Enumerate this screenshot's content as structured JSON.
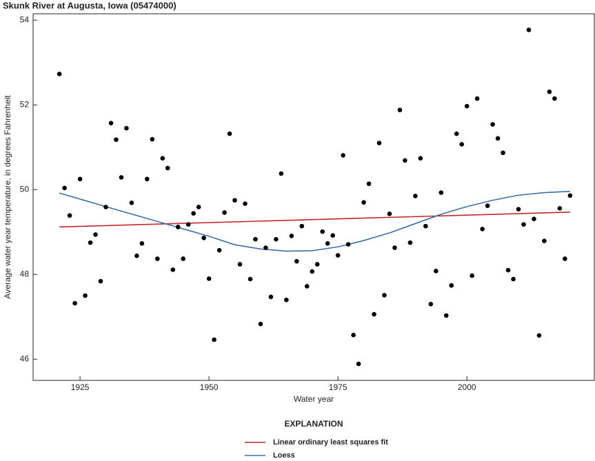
{
  "chart_data": {
    "type": "scatter",
    "title": "Skunk River at Augusta, Iowa (05474000)",
    "x_label": "Water year",
    "y_label": "Average water year temperature, in degrees Fahrenheit",
    "legend_title": "EXPLANATION",
    "xlim": [
      1915.9,
      2024.7
    ],
    "ylim": [
      45.5,
      54.15
    ],
    "xticks": [
      1925,
      1950,
      1975,
      2000
    ],
    "yticks": [
      46,
      48,
      50,
      52,
      54
    ],
    "points": {
      "color": "#000000",
      "x": [
        1921,
        1922,
        1923,
        1924,
        1925,
        1926,
        1927,
        1928,
        1929,
        1930,
        1931,
        1932,
        1933,
        1934,
        1935,
        1936,
        1937,
        1938,
        1939,
        1940,
        1941,
        1942,
        1943,
        1944,
        1945,
        1946,
        1947,
        1948,
        1949,
        1950,
        1951,
        1952,
        1953,
        1954,
        1955,
        1956,
        1957,
        1958,
        1959,
        1960,
        1961,
        1962,
        1963,
        1964,
        1965,
        1966,
        1967,
        1968,
        1969,
        1970,
        1971,
        1972,
        1973,
        1974,
        1975,
        1976,
        1977,
        1978,
        1979,
        1980,
        1981,
        1982,
        1983,
        1984,
        1985,
        1986,
        1987,
        1988,
        1989,
        1990,
        1991,
        1992,
        1993,
        1994,
        1995,
        1996,
        1997,
        1998,
        1999,
        2000,
        2001,
        2002,
        2003,
        2004,
        2005,
        2006,
        2007,
        2008,
        2009,
        2010,
        2011,
        2012,
        2013,
        2014,
        2015,
        2016,
        2017,
        2018,
        2019,
        2020
      ],
      "values": [
        52.73,
        50.04,
        49.39,
        47.32,
        50.25,
        47.5,
        48.75,
        48.94,
        47.84,
        49.59,
        51.57,
        51.18,
        50.29,
        51.45,
        49.69,
        48.44,
        48.73,
        50.25,
        51.19,
        48.37,
        50.74,
        50.51,
        48.11,
        49.12,
        48.37,
        49.18,
        49.44,
        49.59,
        48.86,
        47.9,
        46.46,
        48.57,
        49.46,
        51.32,
        49.75,
        48.24,
        49.67,
        47.89,
        48.83,
        46.83,
        48.63,
        47.47,
        48.83,
        50.38,
        47.4,
        48.91,
        48.31,
        49.14,
        47.72,
        48.07,
        48.24,
        49.01,
        48.73,
        48.92,
        48.45,
        50.81,
        48.71,
        46.57,
        45.89,
        49.7,
        50.14,
        47.06,
        51.1,
        47.51,
        49.43,
        48.63,
        51.88,
        50.69,
        48.75,
        49.85,
        50.74,
        49.14,
        47.3,
        48.08,
        49.93,
        47.03,
        47.74,
        51.32,
        51.07,
        51.97,
        47.97,
        52.15,
        49.07,
        49.62,
        51.54,
        51.21,
        50.87,
        48.1,
        47.89,
        49.54,
        49.18,
        53.77,
        49.31,
        46.56,
        48.79,
        52.31,
        52.15,
        49.56,
        48.37,
        49.86
      ]
    },
    "series": [
      {
        "name": "Linear ordinary least squares fit",
        "color": "#c0262d",
        "x": [
          1921,
          2020
        ],
        "values": [
          49.12,
          49.47
        ]
      },
      {
        "name": "Loess",
        "color": "#3a6ea5",
        "x": [
          1921,
          1930,
          1940,
          1950,
          1955,
          1960,
          1965,
          1970,
          1975,
          1980,
          1985,
          1990,
          1995,
          2000,
          2005,
          2010,
          2015,
          2020
        ],
        "values": [
          49.92,
          49.6,
          49.25,
          48.9,
          48.7,
          48.6,
          48.55,
          48.56,
          48.65,
          48.8,
          48.98,
          49.2,
          49.42,
          49.6,
          49.75,
          49.87,
          49.93,
          49.96
        ]
      }
    ]
  }
}
